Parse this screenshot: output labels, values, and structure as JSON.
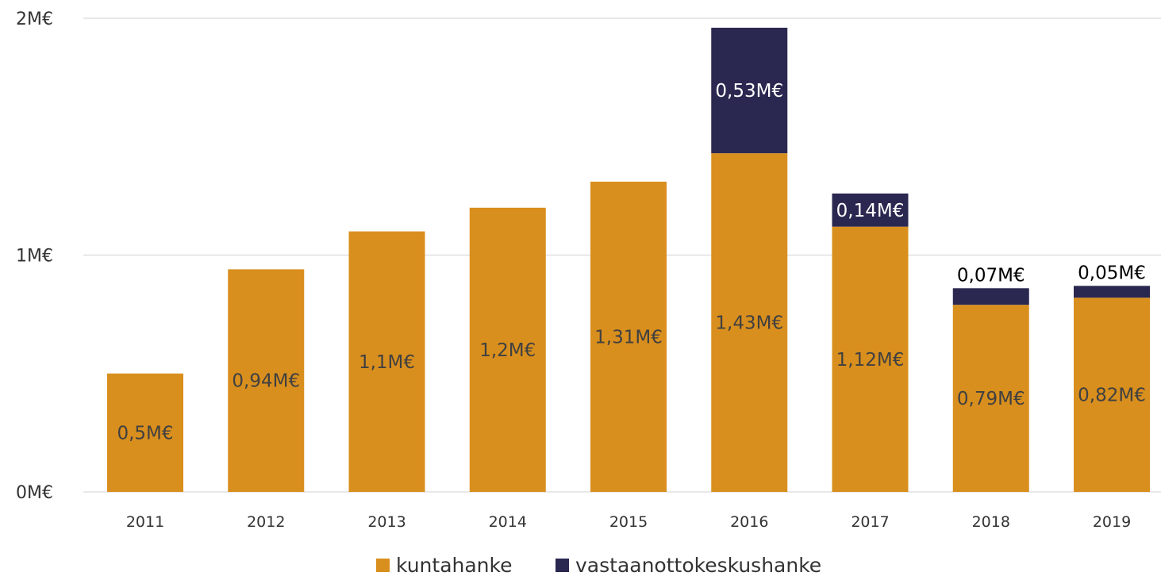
{
  "chart_data": {
    "type": "bar",
    "stacked": true,
    "categories": [
      "2011",
      "2012",
      "2013",
      "2014",
      "2015",
      "2016",
      "2017",
      "2018",
      "2019"
    ],
    "series": [
      {
        "name": "kuntahanke",
        "color": "#D98F1E",
        "values": [
          0.5,
          0.94,
          1.1,
          1.2,
          1.31,
          1.43,
          1.12,
          0.79,
          0.82
        ],
        "labels": [
          "0,5M€",
          "0,94M€",
          "1,1M€",
          "1,2M€",
          "1,31M€",
          "1,43M€",
          "1,12M€",
          "0,79M€",
          "0,82M€"
        ]
      },
      {
        "name": "vastaanottokeskushanke",
        "color": "#2A2850",
        "values": [
          0,
          0,
          0,
          0,
          0,
          0.53,
          0.14,
          0.07,
          0.05
        ],
        "labels": [
          "",
          "",
          "",
          "",
          "",
          "0,53M€",
          "0,14M€",
          "0,07M€",
          "0,05M€"
        ]
      }
    ],
    "ylim": [
      0,
      2
    ],
    "yticks": [
      {
        "value": 0,
        "label": "0M€"
      },
      {
        "value": 1,
        "label": "1M€"
      },
      {
        "value": 2,
        "label": "2M€"
      }
    ],
    "grid": true,
    "legend_position": "bottom"
  }
}
